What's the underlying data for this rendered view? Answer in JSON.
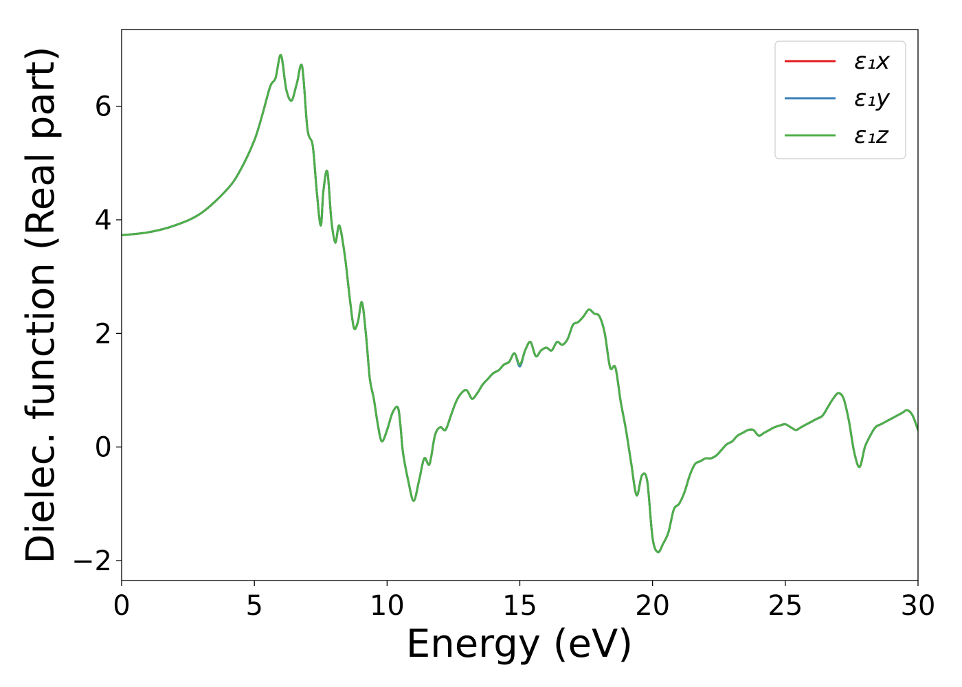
{
  "chart_data": {
    "type": "line",
    "title": "",
    "xlabel": "Energy (eV)",
    "ylabel": "Dielec. function (Real part)",
    "xlim": [
      0,
      30
    ],
    "ylim": [
      -2.35,
      7.35
    ],
    "xticks": [
      0,
      5,
      10,
      15,
      20,
      25,
      30
    ],
    "xtick_labels": [
      "0",
      "5",
      "10",
      "15",
      "20",
      "25",
      "30"
    ],
    "yticks": [
      -2,
      0,
      2,
      4,
      6
    ],
    "ytick_labels": [
      "−2",
      "0",
      "2",
      "4",
      "6"
    ],
    "grid": false,
    "legend_position": "top-right",
    "x": [
      0,
      1,
      2,
      3,
      4,
      4.5,
      5,
      5.3,
      5.6,
      5.8,
      6.0,
      6.2,
      6.4,
      6.6,
      6.8,
      7.0,
      7.2,
      7.35,
      7.5,
      7.6,
      7.75,
      7.9,
      8.05,
      8.2,
      8.4,
      8.6,
      8.75,
      8.9,
      9.05,
      9.2,
      9.35,
      9.5,
      9.65,
      9.8,
      10.0,
      10.2,
      10.4,
      10.5,
      10.6,
      10.8,
      11.0,
      11.2,
      11.4,
      11.6,
      11.8,
      12.0,
      12.2,
      12.4,
      12.6,
      12.8,
      13.0,
      13.2,
      13.4,
      13.6,
      13.8,
      14.0,
      14.2,
      14.4,
      14.6,
      14.8,
      15.0,
      15.2,
      15.4,
      15.6,
      15.8,
      16.0,
      16.2,
      16.4,
      16.6,
      16.8,
      17.0,
      17.2,
      17.4,
      17.6,
      17.8,
      18.0,
      18.2,
      18.4,
      18.6,
      18.8,
      19.0,
      19.2,
      19.4,
      19.6,
      19.8,
      20.0,
      20.2,
      20.4,
      20.6,
      20.8,
      21.0,
      21.2,
      21.4,
      21.6,
      21.8,
      22.0,
      22.2,
      22.4,
      22.6,
      22.8,
      23.0,
      23.2,
      23.4,
      23.6,
      23.8,
      24.0,
      24.2,
      24.4,
      24.6,
      24.8,
      25.0,
      25.2,
      25.4,
      25.6,
      25.8,
      26.0,
      26.2,
      26.4,
      26.6,
      26.8,
      27.0,
      27.2,
      27.4,
      27.6,
      27.8,
      28.0,
      28.2,
      28.4,
      28.6,
      28.8,
      29.0,
      29.2,
      29.4,
      29.6,
      29.8,
      30.0
    ],
    "series": [
      {
        "name": "ε₁x",
        "color": "#e41a1c",
        "values": [
          3.73,
          3.78,
          3.9,
          4.12,
          4.55,
          4.9,
          5.4,
          5.85,
          6.35,
          6.5,
          6.9,
          6.3,
          6.1,
          6.4,
          6.7,
          5.6,
          5.3,
          4.5,
          3.9,
          4.5,
          4.85,
          4.0,
          3.6,
          3.9,
          3.4,
          2.6,
          2.1,
          2.2,
          2.55,
          2.0,
          1.2,
          0.85,
          0.4,
          0.1,
          0.3,
          0.6,
          0.7,
          0.4,
          -0.1,
          -0.6,
          -0.95,
          -0.6,
          -0.2,
          -0.3,
          0.2,
          0.35,
          0.3,
          0.55,
          0.8,
          0.95,
          1.0,
          0.85,
          0.95,
          1.1,
          1.2,
          1.3,
          1.35,
          1.45,
          1.5,
          1.65,
          1.45,
          1.7,
          1.85,
          1.6,
          1.7,
          1.75,
          1.7,
          1.85,
          1.8,
          1.9,
          2.15,
          2.2,
          2.3,
          2.42,
          2.35,
          2.3,
          2.0,
          1.4,
          1.4,
          0.8,
          0.3,
          -0.3,
          -0.85,
          -0.5,
          -0.6,
          -1.6,
          -1.85,
          -1.7,
          -1.5,
          -1.1,
          -1.0,
          -0.8,
          -0.5,
          -0.3,
          -0.25,
          -0.2,
          -0.2,
          -0.15,
          -0.05,
          0.05,
          0.1,
          0.2,
          0.25,
          0.3,
          0.3,
          0.2,
          0.25,
          0.3,
          0.35,
          0.38,
          0.4,
          0.35,
          0.3,
          0.35,
          0.4,
          0.45,
          0.5,
          0.55,
          0.7,
          0.85,
          0.95,
          0.85,
          0.45,
          -0.1,
          -0.35,
          0.0,
          0.2,
          0.35,
          0.4,
          0.45,
          0.5,
          0.55,
          0.6,
          0.65,
          0.55,
          0.3
        ]
      },
      {
        "name": "ε₁y",
        "color": "#377eb8",
        "values": [
          3.73,
          3.78,
          3.9,
          4.12,
          4.55,
          4.9,
          5.4,
          5.85,
          6.35,
          6.5,
          6.9,
          6.3,
          6.1,
          6.4,
          6.7,
          5.6,
          5.3,
          4.5,
          3.9,
          4.5,
          4.85,
          4.0,
          3.6,
          3.9,
          3.4,
          2.6,
          2.1,
          2.2,
          2.55,
          2.0,
          1.2,
          0.85,
          0.4,
          0.1,
          0.3,
          0.6,
          0.7,
          0.4,
          -0.1,
          -0.6,
          -0.95,
          -0.6,
          -0.2,
          -0.3,
          0.2,
          0.35,
          0.3,
          0.55,
          0.8,
          0.95,
          1.0,
          0.85,
          0.95,
          1.1,
          1.2,
          1.3,
          1.35,
          1.45,
          1.5,
          1.65,
          1.42,
          1.7,
          1.85,
          1.6,
          1.7,
          1.75,
          1.7,
          1.85,
          1.8,
          1.9,
          2.15,
          2.2,
          2.3,
          2.42,
          2.35,
          2.3,
          2.0,
          1.4,
          1.4,
          0.8,
          0.3,
          -0.3,
          -0.85,
          -0.5,
          -0.6,
          -1.6,
          -1.85,
          -1.7,
          -1.5,
          -1.1,
          -1.0,
          -0.8,
          -0.5,
          -0.3,
          -0.25,
          -0.2,
          -0.2,
          -0.15,
          -0.05,
          0.05,
          0.1,
          0.2,
          0.25,
          0.3,
          0.3,
          0.2,
          0.25,
          0.3,
          0.35,
          0.38,
          0.4,
          0.35,
          0.3,
          0.35,
          0.4,
          0.45,
          0.5,
          0.55,
          0.7,
          0.85,
          0.95,
          0.85,
          0.45,
          -0.1,
          -0.35,
          0.0,
          0.2,
          0.35,
          0.4,
          0.45,
          0.5,
          0.55,
          0.6,
          0.65,
          0.55,
          0.3
        ]
      },
      {
        "name": "ε₁z",
        "color": "#4daf4a",
        "values": [
          3.73,
          3.78,
          3.9,
          4.12,
          4.55,
          4.9,
          5.4,
          5.85,
          6.35,
          6.5,
          6.9,
          6.3,
          6.1,
          6.4,
          6.7,
          5.6,
          5.3,
          4.5,
          3.9,
          4.5,
          4.85,
          4.0,
          3.6,
          3.9,
          3.4,
          2.6,
          2.1,
          2.2,
          2.55,
          2.0,
          1.2,
          0.85,
          0.4,
          0.1,
          0.3,
          0.6,
          0.7,
          0.4,
          -0.1,
          -0.6,
          -0.95,
          -0.6,
          -0.2,
          -0.3,
          0.2,
          0.35,
          0.3,
          0.55,
          0.8,
          0.95,
          1.0,
          0.85,
          0.95,
          1.1,
          1.2,
          1.3,
          1.35,
          1.45,
          1.5,
          1.65,
          1.45,
          1.7,
          1.85,
          1.6,
          1.7,
          1.75,
          1.7,
          1.85,
          1.8,
          1.9,
          2.15,
          2.2,
          2.3,
          2.42,
          2.35,
          2.3,
          2.0,
          1.4,
          1.4,
          0.8,
          0.3,
          -0.3,
          -0.85,
          -0.5,
          -0.6,
          -1.6,
          -1.85,
          -1.7,
          -1.5,
          -1.1,
          -1.0,
          -0.8,
          -0.5,
          -0.3,
          -0.25,
          -0.2,
          -0.2,
          -0.15,
          -0.05,
          0.05,
          0.1,
          0.2,
          0.25,
          0.3,
          0.3,
          0.2,
          0.25,
          0.3,
          0.35,
          0.38,
          0.4,
          0.35,
          0.3,
          0.35,
          0.4,
          0.45,
          0.5,
          0.55,
          0.7,
          0.85,
          0.95,
          0.85,
          0.45,
          -0.1,
          -0.35,
          0.0,
          0.2,
          0.35,
          0.4,
          0.45,
          0.5,
          0.55,
          0.6,
          0.65,
          0.55,
          0.3
        ]
      }
    ]
  }
}
